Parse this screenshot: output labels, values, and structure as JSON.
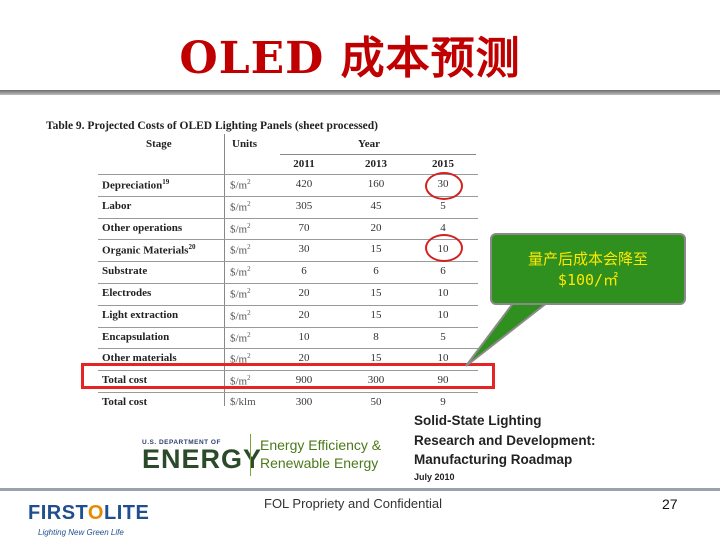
{
  "slide": {
    "title": "OLED 成本预测",
    "footer": "FOL Propriety and Confidential",
    "page_number": "27"
  },
  "table": {
    "caption": "Table 9. Projected Costs of OLED Lighting Panels (sheet processed)",
    "col_stage": "Stage",
    "col_units": "Units",
    "col_year": "Year",
    "years": [
      "2011",
      "2013",
      "2015"
    ],
    "rows": [
      {
        "stage": "Depreciation",
        "note": "19",
        "unit": "$/m",
        "unit_sup": "2",
        "v": [
          "420",
          "160",
          "30"
        ]
      },
      {
        "stage": "Labor",
        "note": "",
        "unit": "$/m",
        "unit_sup": "2",
        "v": [
          "305",
          "45",
          "5"
        ]
      },
      {
        "stage": "Other operations",
        "note": "",
        "unit": "$/m",
        "unit_sup": "2",
        "v": [
          "70",
          "20",
          "4"
        ]
      },
      {
        "stage": "Organic Materials",
        "note": "20",
        "unit": "$/m",
        "unit_sup": "2",
        "v": [
          "30",
          "15",
          "10"
        ]
      },
      {
        "stage": "Substrate",
        "note": "",
        "unit": "$/m",
        "unit_sup": "2",
        "v": [
          "6",
          "6",
          "6"
        ]
      },
      {
        "stage": "Electrodes",
        "note": "",
        "unit": "$/m",
        "unit_sup": "2",
        "v": [
          "20",
          "15",
          "10"
        ]
      },
      {
        "stage": "Light extraction",
        "note": "",
        "unit": "$/m",
        "unit_sup": "2",
        "v": [
          "20",
          "15",
          "10"
        ]
      },
      {
        "stage": "Encapsulation",
        "note": "",
        "unit": "$/m",
        "unit_sup": "2",
        "v": [
          "10",
          "8",
          "5"
        ]
      },
      {
        "stage": "Other materials",
        "note": "",
        "unit": "$/m",
        "unit_sup": "2",
        "v": [
          "20",
          "15",
          "10"
        ]
      },
      {
        "stage": "Total cost",
        "note": "",
        "unit": "$/m",
        "unit_sup": "2",
        "v": [
          "900",
          "300",
          "90"
        ]
      },
      {
        "stage": "Total cost",
        "note": "",
        "unit": "$/klm",
        "unit_sup": "",
        "v": [
          "300",
          "50",
          "9"
        ]
      }
    ]
  },
  "callout": {
    "line1": "量产后成本会降至",
    "line2": "$100/㎡",
    "color": "#2f8f1f",
    "text_color": "#ffe800"
  },
  "logos": {
    "doe_small": "U.S. DEPARTMENT OF",
    "doe_big": "ENERGY",
    "eere_line1": "Energy Efficiency &",
    "eere_line2": "Renewable Energy",
    "report_line1": "Solid-State Lighting",
    "report_line2": "Research and Development:",
    "report_line3": "Manufacturing Roadmap",
    "report_date": "July 2010",
    "company_first": "FIRST",
    "company_o": "O",
    "company_lite": "LITE",
    "company_tagline": "Lighting New Green Life"
  },
  "colors": {
    "title": "#c00000",
    "highlight": "#e52424"
  }
}
